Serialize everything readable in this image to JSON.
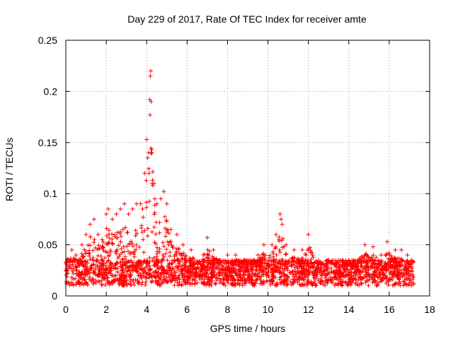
{
  "chart_data": {
    "type": "scatter",
    "title": "Day 229 of 2017, Rate Of TEC Index for receiver amte",
    "xlabel": "GPS time / hours",
    "ylabel": "ROTI / TECUs",
    "xlim": [
      0,
      18
    ],
    "ylim": [
      0,
      0.25
    ],
    "x_ticks": [
      0,
      2,
      4,
      6,
      8,
      10,
      12,
      14,
      16,
      18
    ],
    "x_tick_labels": [
      "0",
      "2",
      "4",
      "6",
      "8",
      "10",
      "12",
      "14",
      "16",
      "18"
    ],
    "y_ticks": [
      0,
      0.05,
      0.1,
      0.15,
      0.2,
      0.25
    ],
    "y_tick_labels": [
      "0",
      "0.05",
      "0.1",
      "0.15",
      "0.2",
      "0.25"
    ],
    "grid": true,
    "marker": "+",
    "series_color": "#ff0000",
    "series": [
      {
        "name": "ROTI",
        "x_range": [
          0,
          17.2
        ],
        "baseline_band": [
          0.01,
          0.035
        ],
        "points": [
          [
            0.1,
            0.03
          ],
          [
            0.3,
            0.045
          ],
          [
            0.5,
            0.04
          ],
          [
            0.8,
            0.05
          ],
          [
            1.0,
            0.06
          ],
          [
            1.2,
            0.07
          ],
          [
            1.4,
            0.075
          ],
          [
            1.6,
            0.06
          ],
          [
            1.8,
            0.055
          ],
          [
            2.0,
            0.08
          ],
          [
            2.1,
            0.085
          ],
          [
            2.3,
            0.075
          ],
          [
            2.5,
            0.08
          ],
          [
            2.7,
            0.085
          ],
          [
            2.9,
            0.09
          ],
          [
            3.1,
            0.08
          ],
          [
            3.3,
            0.085
          ],
          [
            3.5,
            0.09
          ],
          [
            3.7,
            0.09
          ],
          [
            3.8,
            0.085
          ],
          [
            3.9,
            0.12
          ],
          [
            4.0,
            0.153
          ],
          [
            4.05,
            0.135
          ],
          [
            4.1,
            0.14
          ],
          [
            4.12,
            0.12
          ],
          [
            4.15,
            0.192
          ],
          [
            4.17,
            0.177
          ],
          [
            4.18,
            0.215
          ],
          [
            4.2,
            0.22
          ],
          [
            4.22,
            0.19
          ],
          [
            4.25,
            0.143
          ],
          [
            4.3,
            0.108
          ],
          [
            4.4,
            0.095
          ],
          [
            4.5,
            0.09
          ],
          [
            4.7,
            0.095
          ],
          [
            4.85,
            0.102
          ],
          [
            5.0,
            0.09
          ],
          [
            5.2,
            0.065
          ],
          [
            5.5,
            0.06
          ],
          [
            5.8,
            0.05
          ],
          [
            6.2,
            0.045
          ],
          [
            7.0,
            0.057
          ],
          [
            7.3,
            0.045
          ],
          [
            7.6,
            0.035
          ],
          [
            8.0,
            0.04
          ],
          [
            8.4,
            0.04
          ],
          [
            8.8,
            0.035
          ],
          [
            9.5,
            0.04
          ],
          [
            9.8,
            0.05
          ],
          [
            10.2,
            0.05
          ],
          [
            10.4,
            0.06
          ],
          [
            10.6,
            0.08
          ],
          [
            10.65,
            0.075
          ],
          [
            10.7,
            0.07
          ],
          [
            10.9,
            0.05
          ],
          [
            11.3,
            0.045
          ],
          [
            11.7,
            0.045
          ],
          [
            12.0,
            0.06
          ],
          [
            12.2,
            0.04
          ],
          [
            13.0,
            0.035
          ],
          [
            14.0,
            0.035
          ],
          [
            14.8,
            0.05
          ],
          [
            15.2,
            0.048
          ],
          [
            15.6,
            0.04
          ],
          [
            15.9,
            0.053
          ],
          [
            16.3,
            0.045
          ],
          [
            16.6,
            0.045
          ],
          [
            16.9,
            0.04
          ],
          [
            17.1,
            0.035
          ]
        ]
      }
    ]
  }
}
